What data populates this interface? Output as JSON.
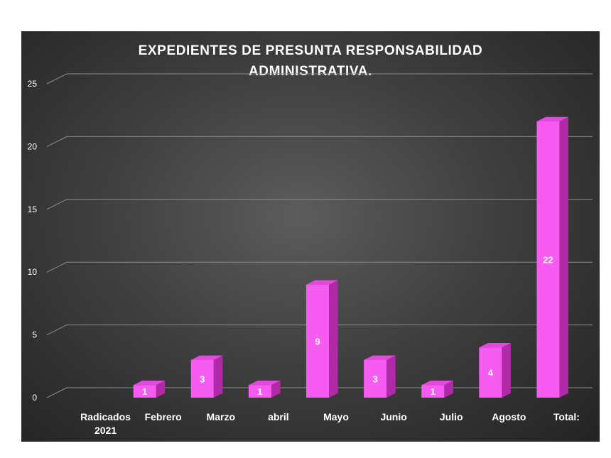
{
  "chart_data": {
    "type": "bar",
    "title_lines": [
      "EXPEDIENTES  DE PRESUNTA  RESPONSABILIDAD",
      "ADMINISTRATIVA."
    ],
    "categories": [
      [
        "Radicados",
        "2021"
      ],
      [
        "Febrero"
      ],
      [
        "Marzo"
      ],
      [
        "abril"
      ],
      [
        "Mayo"
      ],
      [
        "Junio"
      ],
      [
        "Julio"
      ],
      [
        "Agosto"
      ],
      [
        "Total:"
      ]
    ],
    "values": [
      null,
      1,
      3,
      1,
      9,
      3,
      1,
      4,
      22
    ],
    "data_labels": [
      "",
      "1",
      "3",
      "1",
      "9",
      "3",
      "1",
      "4",
      "22"
    ],
    "ylim": [
      0,
      25
    ],
    "yticks": [
      0,
      5,
      10,
      15,
      20,
      25
    ],
    "grid": true,
    "legend": "none",
    "bar_style": "3d-column",
    "colors": {
      "bar_front": "#f75cf2",
      "bar_side": "#b02aa8",
      "bar_top": "#e448dc",
      "background_center": "#5c5c5c",
      "background_edge": "#232323",
      "gridline": "#8c8c8c",
      "text": "#ffffff"
    }
  }
}
